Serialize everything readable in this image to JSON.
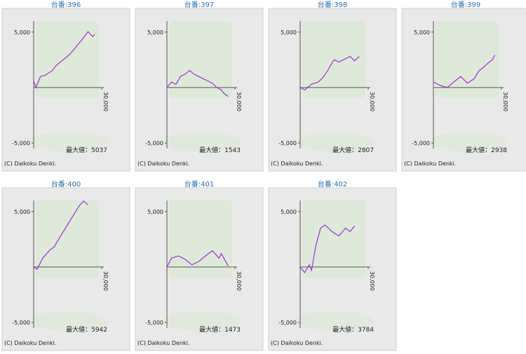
{
  "chart_data": [
    {
      "type": "line",
      "title": "台番:396",
      "x": [
        0,
        1000,
        3000,
        5000,
        8000,
        10000,
        13000,
        16000,
        18000,
        20000,
        22000,
        24000,
        26000,
        27000
      ],
      "values": [
        600,
        0,
        1000,
        1100,
        1500,
        2000,
        2500,
        3000,
        3500,
        4000,
        4500,
        5037,
        4600,
        4800
      ],
      "color": "#9b33d6",
      "ylim": [
        -5500,
        6500
      ],
      "yticks": [
        {
          "value": 5000,
          "label": "5,000"
        },
        {
          "value": -5000,
          "label": "-5,000"
        }
      ],
      "xlim": [
        0,
        30000
      ],
      "xticks": [
        {
          "value": 30000,
          "label": "30,000"
        }
      ],
      "annotation": "最大値：5037",
      "copyright": "(C) Daikoku Denki."
    },
    {
      "type": "line",
      "title": "台番:397",
      "x": [
        0,
        2000,
        4000,
        6000,
        8000,
        10000,
        12000,
        14000,
        16000,
        18000,
        20000,
        22000,
        24000,
        25000,
        27000
      ],
      "values": [
        0,
        500,
        300,
        1000,
        1200,
        1543,
        1200,
        1000,
        800,
        600,
        400,
        0,
        -200,
        -500,
        -800
      ],
      "color": "#9b33d6",
      "ylim": [
        -5500,
        6500
      ],
      "yticks": [
        {
          "value": 5000,
          "label": "5,000"
        },
        {
          "value": -5000,
          "label": "-5,000"
        }
      ],
      "xlim": [
        0,
        30000
      ],
      "xticks": [
        {
          "value": 30000,
          "label": "30,000"
        }
      ],
      "annotation": "最大値：1543",
      "copyright": "(C) Daikoku Denki."
    },
    {
      "type": "line",
      "title": "台番:398",
      "x": [
        0,
        2000,
        5000,
        8000,
        10000,
        12000,
        14000,
        15000,
        17000,
        20000,
        22000,
        24000,
        26000
      ],
      "values": [
        0,
        -200,
        300,
        500,
        900,
        1500,
        2200,
        2500,
        2300,
        2600,
        2807,
        2400,
        2800
      ],
      "color": "#9b33d6",
      "ylim": [
        -5500,
        6500
      ],
      "yticks": [
        {
          "value": 5000,
          "label": "5,000"
        },
        {
          "value": -5000,
          "label": "-5,000"
        }
      ],
      "xlim": [
        0,
        30000
      ],
      "xticks": [
        {
          "value": 30000,
          "label": "30,000"
        }
      ],
      "annotation": "最大値：2807",
      "copyright": "(C) Daikoku Denki."
    },
    {
      "type": "line",
      "title": "台番:399",
      "x": [
        0,
        3000,
        6000,
        9000,
        12000,
        15000,
        18000,
        20000,
        22000,
        24000,
        26000,
        27000
      ],
      "values": [
        500,
        200,
        0,
        500,
        1000,
        400,
        800,
        1500,
        1800,
        2200,
        2500,
        2938
      ],
      "color": "#9b33d6",
      "ylim": [
        -5500,
        6500
      ],
      "yticks": [
        {
          "value": 5000,
          "label": "5,000"
        },
        {
          "value": -5000,
          "label": "-5,000"
        }
      ],
      "xlim": [
        0,
        30000
      ],
      "xticks": [
        {
          "value": 30000,
          "label": "30,000"
        }
      ],
      "annotation": "最大値：2938",
      "copyright": "(C) Daikoku Denki."
    },
    {
      "type": "line",
      "title": "台番:400",
      "x": [
        0,
        1500,
        4000,
        7000,
        9000,
        11000,
        14000,
        17000,
        20000,
        22000,
        24000
      ],
      "values": [
        0,
        -200,
        800,
        1500,
        1800,
        2500,
        3500,
        4500,
        5500,
        5942,
        5600
      ],
      "color": "#9b33d6",
      "ylim": [
        -5500,
        6500
      ],
      "yticks": [
        {
          "value": 5000,
          "label": "5,000"
        },
        {
          "value": -5000,
          "label": "-5,000"
        }
      ],
      "xlim": [
        0,
        30000
      ],
      "xticks": [
        {
          "value": 30000,
          "label": "30,000"
        }
      ],
      "annotation": "最大値：5942",
      "copyright": "(C) Daikoku Denki."
    },
    {
      "type": "line",
      "title": "台番:401",
      "x": [
        0,
        2000,
        5000,
        8000,
        11000,
        14000,
        17000,
        20000,
        23000,
        24000,
        27000
      ],
      "values": [
        0,
        800,
        1000,
        700,
        200,
        500,
        1000,
        1473,
        800,
        1200,
        100
      ],
      "color": "#9b33d6",
      "ylim": [
        -5500,
        6500
      ],
      "yticks": [
        {
          "value": 5000,
          "label": "5,000"
        },
        {
          "value": -5000,
          "label": "-5,000"
        }
      ],
      "xlim": [
        0,
        30000
      ],
      "xticks": [
        {
          "value": 30000,
          "label": "30,000"
        }
      ],
      "annotation": "最大値：1473",
      "copyright": "(C) Daikoku Denki."
    },
    {
      "type": "line",
      "title": "台番:402",
      "x": [
        0,
        2000,
        4000,
        5000,
        7000,
        9000,
        11000,
        14000,
        17000,
        20000,
        22000,
        24000
      ],
      "values": [
        0,
        -500,
        200,
        -300,
        2000,
        3500,
        3784,
        3200,
        2800,
        3500,
        3200,
        3700
      ],
      "color": "#9b33d6",
      "ylim": [
        -5500,
        6500
      ],
      "yticks": [
        {
          "value": 5000,
          "label": "5,000"
        },
        {
          "value": -5000,
          "label": "-5,000"
        }
      ],
      "xlim": [
        0,
        30000
      ],
      "xticks": [
        {
          "value": 30000,
          "label": "30,000"
        }
      ],
      "annotation": "最大値：3784",
      "copyright": "(C) Daikoku Denki."
    }
  ]
}
